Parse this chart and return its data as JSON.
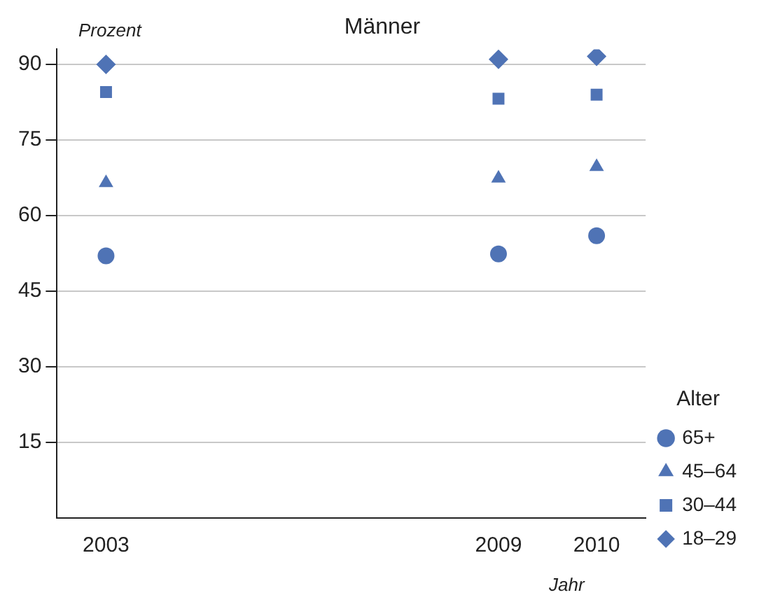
{
  "chart_data": {
    "type": "scatter",
    "title": "Männer",
    "ylabel": "Prozent",
    "xlabel": "Jahr",
    "legend_title": "Alter",
    "categories": [
      "2003",
      null,
      null,
      null,
      "2009",
      "2010"
    ],
    "series": [
      {
        "name": "65+",
        "color": "#4f73b5",
        "marker": "circle",
        "values": [
          52,
          null,
          null,
          null,
          52.4,
          56
        ]
      },
      {
        "name": "45–64",
        "color": "#4f73b5",
        "marker": "triangle",
        "values": [
          66.5,
          null,
          null,
          null,
          67.4,
          69.7
        ]
      },
      {
        "name": "30–44",
        "color": "#4f73b5",
        "marker": "square",
        "values": [
          84.5,
          null,
          null,
          null,
          83.2,
          84
        ]
      },
      {
        "name": "18–29",
        "color": "#4f73b5",
        "marker": "diamond",
        "values": [
          90,
          null,
          null,
          null,
          91,
          91.6
        ]
      }
    ],
    "ylim": [
      0,
      93
    ],
    "yticks": [
      15,
      30,
      45,
      60,
      75,
      90
    ],
    "grid": "y",
    "legend": "bottom right"
  }
}
